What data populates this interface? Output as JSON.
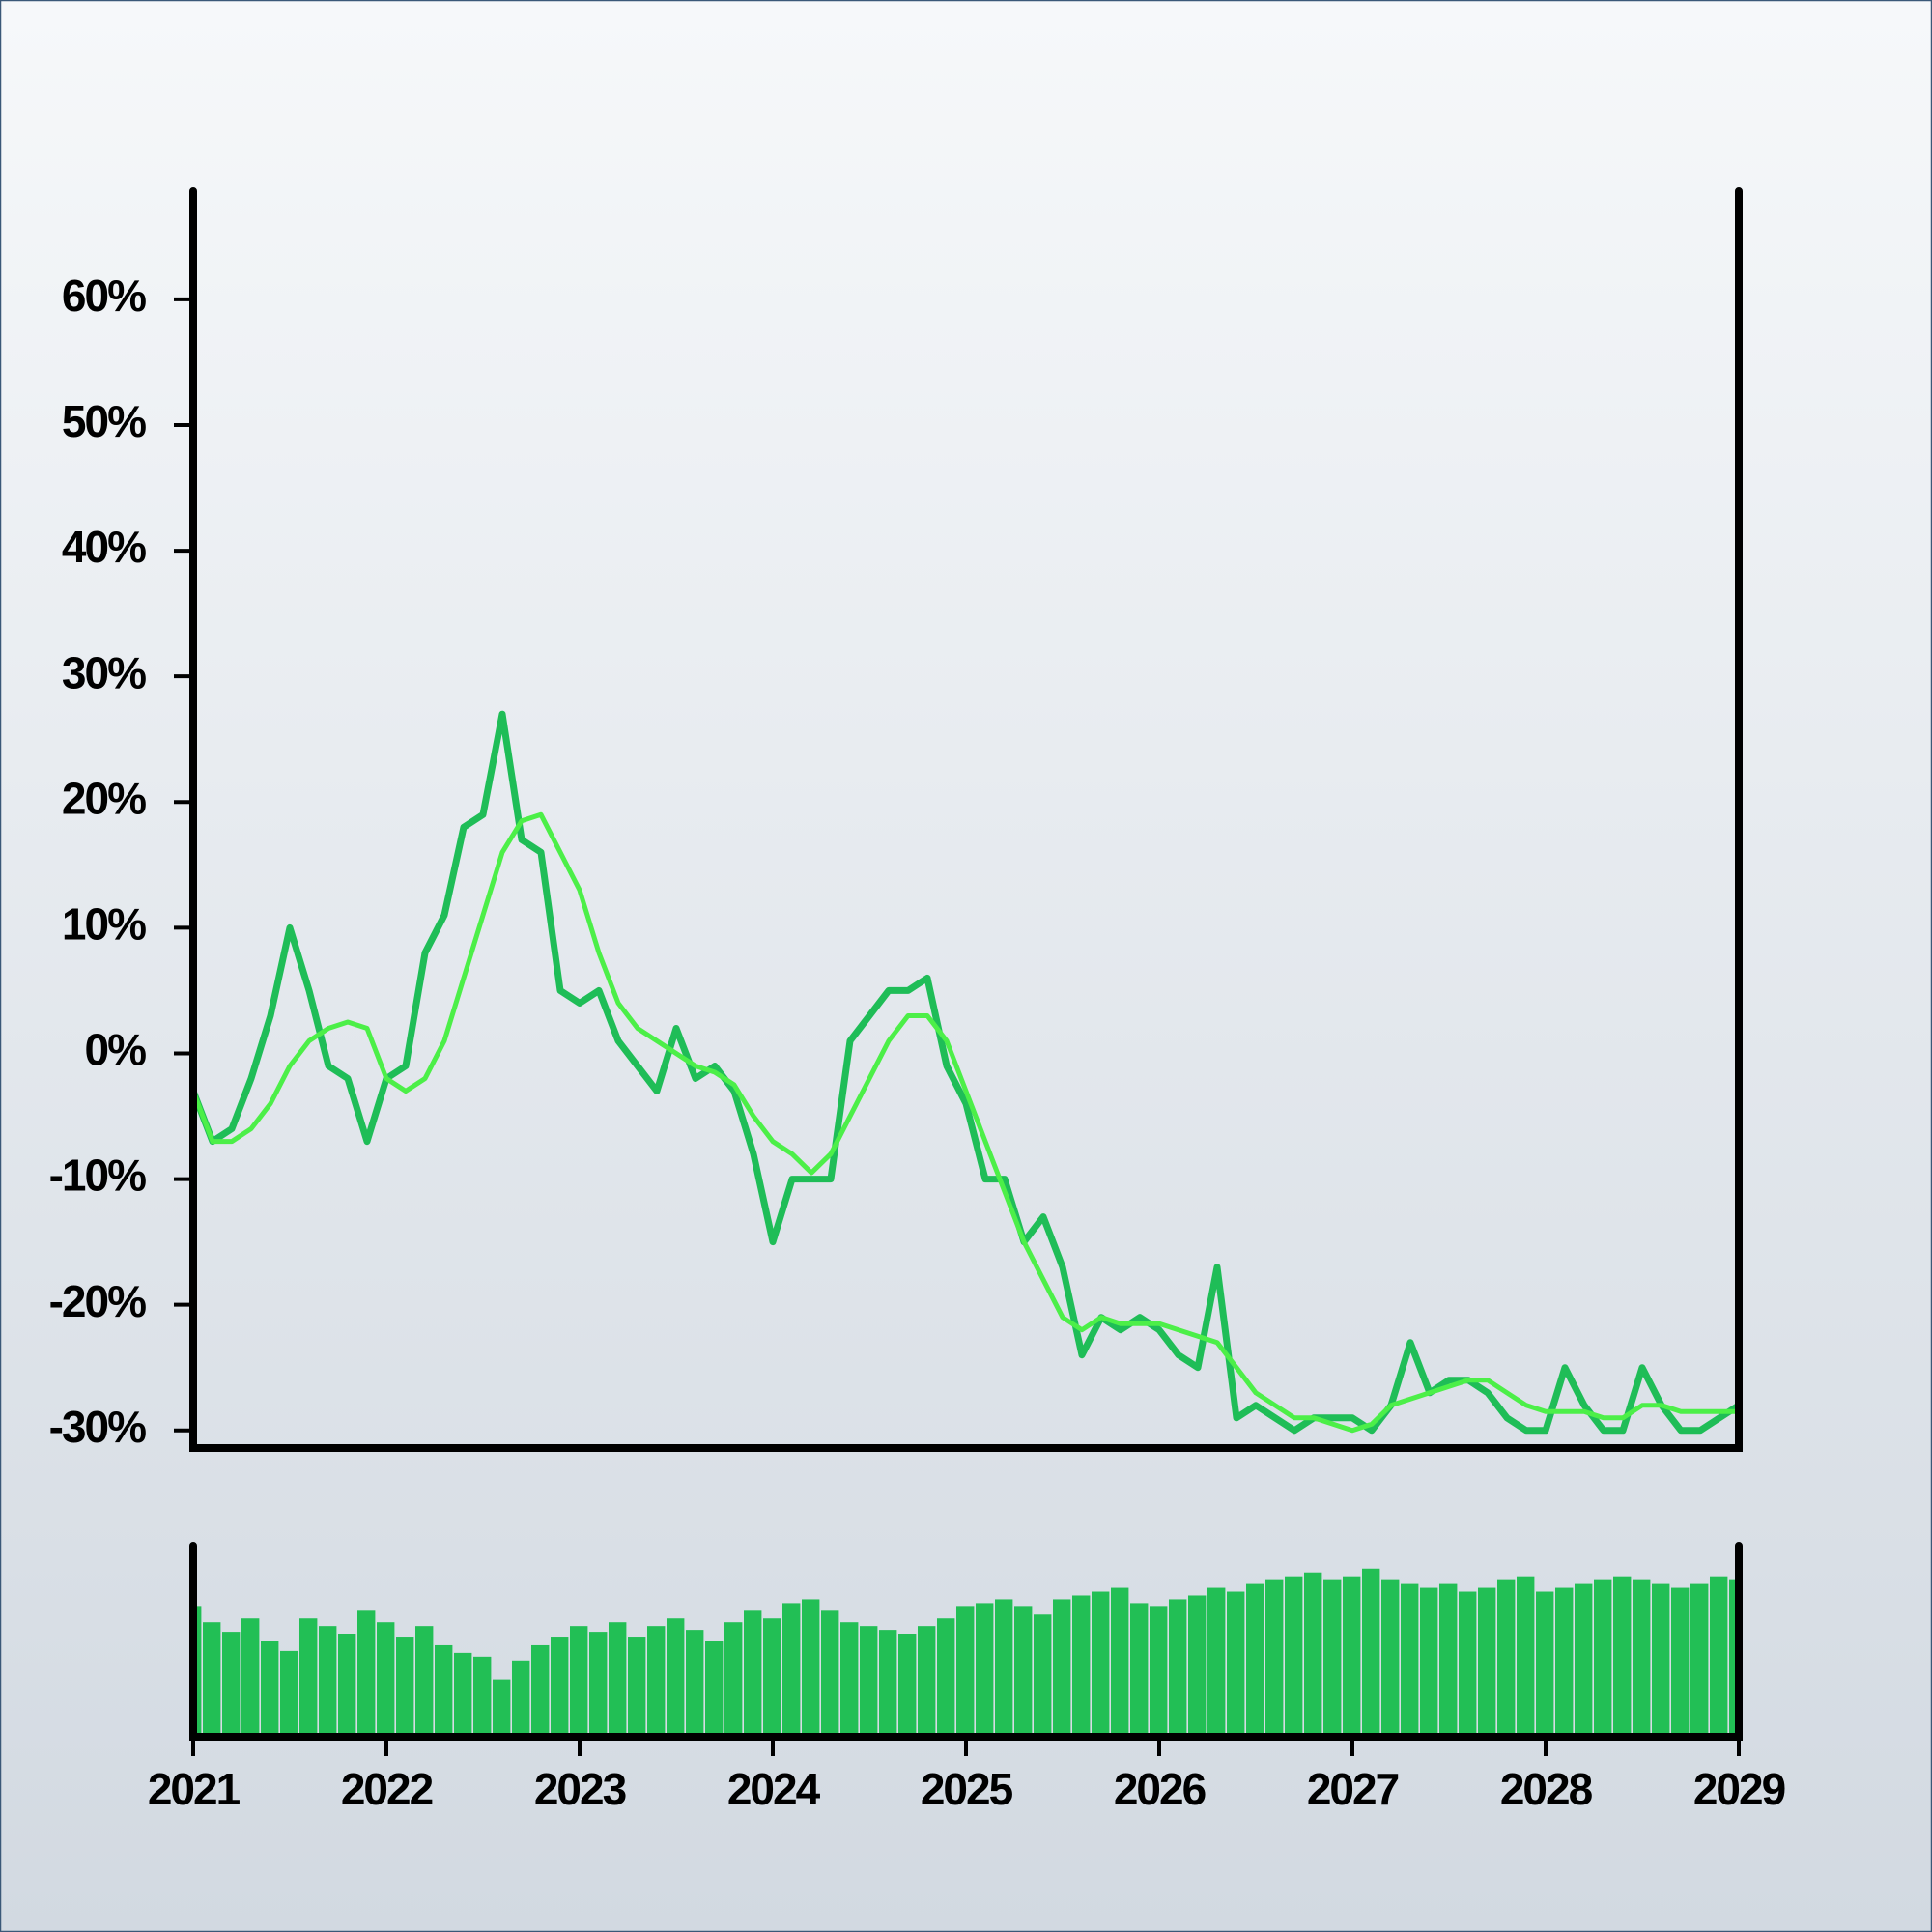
{
  "chart_data": [
    {
      "type": "line",
      "x": [
        2021.0,
        2021.1,
        2021.2,
        2021.3,
        2021.4,
        2021.5,
        2021.6,
        2021.7,
        2021.8,
        2021.9,
        2022.0,
        2022.1,
        2022.2,
        2022.3,
        2022.4,
        2022.5,
        2022.6,
        2022.7,
        2022.8,
        2022.9,
        2023.0,
        2023.1,
        2023.2,
        2023.3,
        2023.4,
        2023.5,
        2023.6,
        2023.7,
        2023.8,
        2023.9,
        2024.0,
        2024.1,
        2024.2,
        2024.3,
        2024.4,
        2024.5,
        2024.6,
        2024.7,
        2024.8,
        2024.9,
        2025.0,
        2025.1,
        2025.2,
        2025.3,
        2025.4,
        2025.5,
        2025.6,
        2025.7,
        2025.8,
        2025.9,
        2026.0,
        2026.1,
        2026.2,
        2026.3,
        2026.4,
        2026.5,
        2026.6,
        2026.7,
        2026.8,
        2026.9,
        2027.0,
        2027.1,
        2027.2,
        2027.3,
        2027.4,
        2027.5,
        2027.6,
        2027.7,
        2027.8,
        2027.9,
        2028.0,
        2028.1,
        2028.2,
        2028.3,
        2028.4,
        2028.5,
        2028.6,
        2028.7,
        2028.8,
        2028.9,
        2029.0
      ],
      "series": [
        {
          "color": "#1fbd57",
          "values": [
            -3,
            -7,
            -6,
            -2,
            3,
            10,
            5,
            -1,
            -2,
            -7,
            -2,
            -1,
            8,
            11,
            18,
            19,
            27,
            17,
            16,
            5,
            4,
            5,
            1,
            -1,
            -3,
            2,
            -2,
            -1,
            -3,
            -8,
            -15,
            -10,
            -10,
            -10,
            1,
            3,
            5,
            5,
            6,
            -1,
            -4,
            -10,
            -10,
            -15,
            -13,
            -17,
            -24,
            -21,
            -22,
            -21,
            -22,
            -24,
            -25,
            -17,
            -29,
            -28,
            -29,
            -30,
            -29,
            -29,
            -29,
            -30,
            -28,
            -23,
            -27,
            -26,
            -26,
            -27,
            -29,
            -30,
            -30,
            -25,
            -28,
            -30,
            -30,
            -25,
            -28,
            -30,
            -30,
            -29,
            -28
          ]
        },
        {
          "color": "#4cef48",
          "values": [
            -3,
            -7,
            -7,
            -6,
            -4,
            -1,
            1,
            2,
            2.5,
            2,
            -2,
            -3,
            -2,
            1,
            6,
            11,
            16,
            18.5,
            19,
            16,
            13,
            8,
            4,
            2,
            1,
            0,
            -1,
            -1.5,
            -2.5,
            -5,
            -7,
            -8,
            -9.5,
            -8,
            -5,
            -2,
            1,
            3,
            3,
            1,
            -3,
            -7,
            -11,
            -15,
            -18,
            -21,
            -22,
            -21,
            -21.5,
            -21.5,
            -21.5,
            -22,
            -22.5,
            -23,
            -25,
            -27,
            -28,
            -29,
            -29,
            -29.5,
            -30,
            -29.5,
            -28,
            -27.5,
            -27,
            -26.5,
            -26,
            -26,
            -27,
            -28,
            -28.5,
            -28.5,
            -28.5,
            -29,
            -29,
            -28,
            -28,
            -28.5,
            -28.5,
            -28.5,
            -28.5
          ]
        }
      ],
      "xlim": [
        2021,
        2029
      ],
      "ylim": [
        -31.4,
        68.6
      ],
      "yticks": [
        {
          "value": -30,
          "label": "-30%"
        },
        {
          "value": -20,
          "label": "-20%"
        },
        {
          "value": -10,
          "label": "-10%"
        },
        {
          "value": 0,
          "label": "0%"
        },
        {
          "value": 10,
          "label": "10%"
        },
        {
          "value": 20,
          "label": "20%"
        },
        {
          "value": 30,
          "label": "30%"
        },
        {
          "value": 40,
          "label": "40%"
        },
        {
          "value": 50,
          "label": "50%"
        },
        {
          "value": 60,
          "label": "60%"
        }
      ]
    },
    {
      "type": "bar",
      "x": [
        2021.0,
        2021.1,
        2021.2,
        2021.3,
        2021.4,
        2021.5,
        2021.6,
        2021.7,
        2021.8,
        2021.9,
        2022.0,
        2022.1,
        2022.2,
        2022.3,
        2022.4,
        2022.5,
        2022.6,
        2022.7,
        2022.8,
        2022.9,
        2023.0,
        2023.1,
        2023.2,
        2023.3,
        2023.4,
        2023.5,
        2023.6,
        2023.7,
        2023.8,
        2023.9,
        2024.0,
        2024.1,
        2024.2,
        2024.3,
        2024.4,
        2024.5,
        2024.6,
        2024.7,
        2024.8,
        2024.9,
        2025.0,
        2025.1,
        2025.2,
        2025.3,
        2025.4,
        2025.5,
        2025.6,
        2025.7,
        2025.8,
        2025.9,
        2026.0,
        2026.1,
        2026.2,
        2026.3,
        2026.4,
        2026.5,
        2026.6,
        2026.7,
        2026.8,
        2026.9,
        2027.0,
        2027.1,
        2027.2,
        2027.3,
        2027.4,
        2027.5,
        2027.6,
        2027.7,
        2027.8,
        2027.9,
        2028.0,
        2028.1,
        2028.2,
        2028.3,
        2028.4,
        2028.5,
        2028.6,
        2028.7,
        2028.8,
        2028.9,
        2029.0
      ],
      "values": [
        68,
        60,
        55,
        62,
        50,
        45,
        62,
        58,
        54,
        66,
        60,
        52,
        58,
        48,
        44,
        42,
        30,
        40,
        48,
        52,
        58,
        55,
        60,
        52,
        58,
        62,
        56,
        50,
        60,
        66,
        62,
        70,
        72,
        66,
        60,
        58,
        56,
        54,
        58,
        62,
        68,
        70,
        72,
        68,
        64,
        72,
        74,
        76,
        78,
        70,
        68,
        72,
        74,
        78,
        76,
        80,
        82,
        84,
        86,
        82,
        84,
        88,
        82,
        80,
        78,
        80,
        76,
        78,
        82,
        84,
        76,
        78,
        80,
        82,
        84,
        82,
        80,
        78,
        80,
        84,
        82
      ],
      "color": "#22bf55",
      "xlim": [
        2021,
        2029
      ],
      "ylim": [
        0,
        100
      ],
      "xticks": [
        2021,
        2022,
        2023,
        2024,
        2025,
        2026,
        2027,
        2028,
        2029
      ]
    }
  ]
}
